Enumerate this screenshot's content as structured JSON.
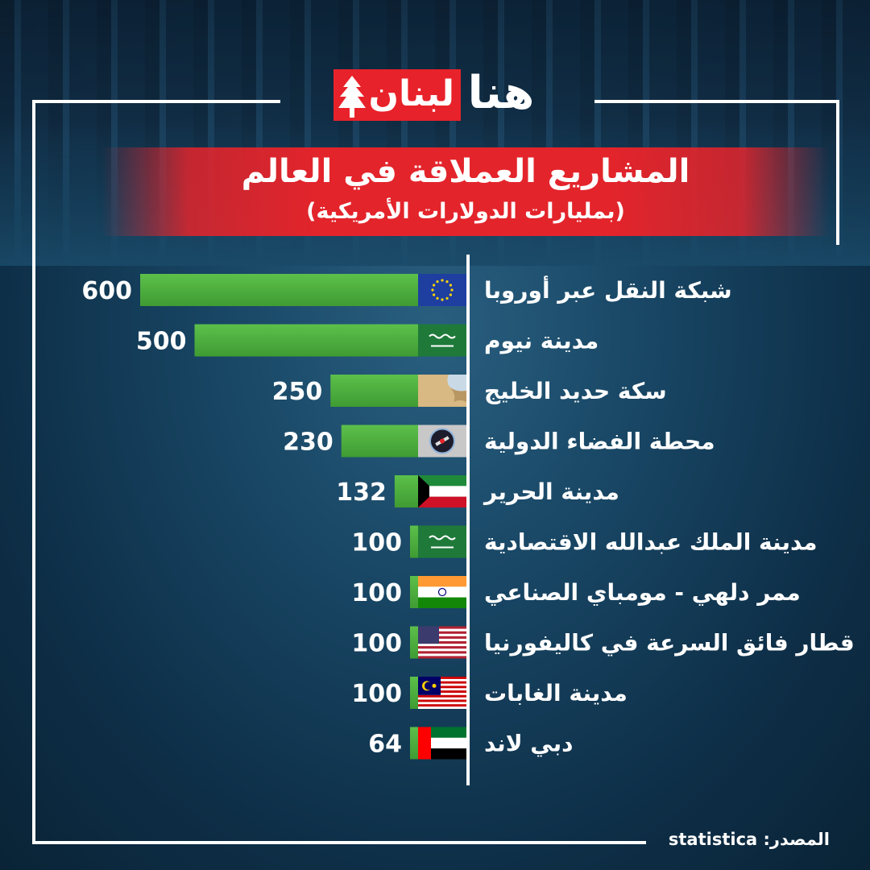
{
  "brand": {
    "logo_part1": "لبنان",
    "logo_part2": "هنا"
  },
  "title": "المشاريع العملاقة في العالم",
  "subtitle": "(بمليارات الدولارات الأمريكية)",
  "source": "المصدر: statistica",
  "colors": {
    "bar": "#4cae3c",
    "accent_red": "#e3242b",
    "background": "#184664"
  },
  "chart_data": {
    "type": "bar",
    "orientation": "horizontal",
    "title": "المشاريع العملاقة في العالم",
    "subtitle": "(بمليارات الدولارات الأمريكية)",
    "categories": [
      "شبكة النقل عبر أوروبا",
      "مدينة نيوم",
      "سكة حديد الخليج",
      "محطة الفضاء الدولية",
      "مدينة الحرير",
      "مدينة الملك عبدالله الاقتصادية",
      "ممر دلهي - مومباي الصناعي",
      "قطار فائق السرعة في كاليفورنيا",
      "مدينة الغابات",
      "دبي لاند"
    ],
    "values": [
      600,
      500,
      250,
      230,
      132,
      100,
      100,
      100,
      100,
      64
    ],
    "icons": [
      "eu-flag-icon",
      "saudi-flag-icon",
      "gulf-map-icon",
      "space-station-icon",
      "kuwait-flag-icon",
      "saudi-flag-icon",
      "india-flag-icon",
      "usa-flag-icon",
      "malaysia-flag-icon",
      "uae-flag-icon"
    ],
    "xlim": [
      0,
      600
    ],
    "grid": false,
    "legend": "none"
  }
}
